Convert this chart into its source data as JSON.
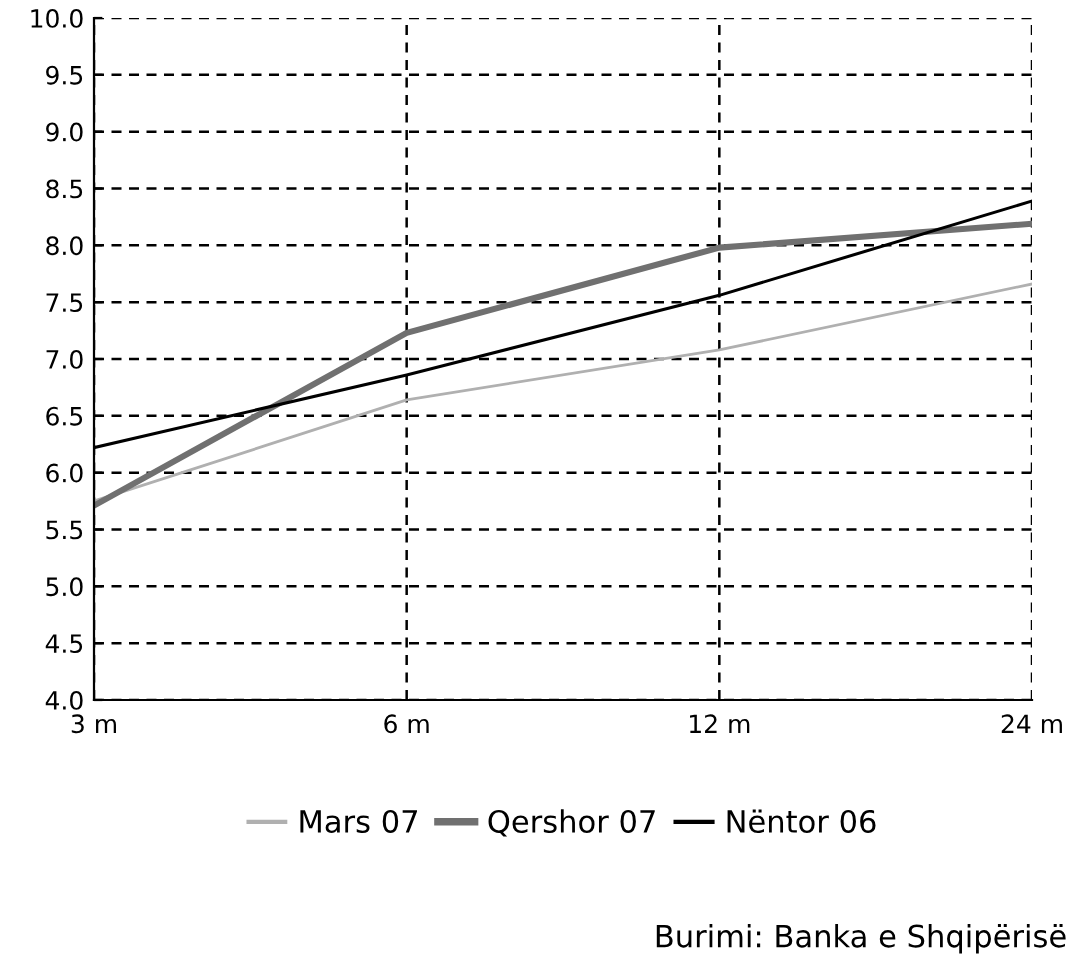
{
  "chart_data": {
    "type": "line",
    "categories": [
      "3 m",
      "6 m",
      "12 m",
      "24 m"
    ],
    "series": [
      {
        "name": "Mars 07",
        "color": "#b0b0b0",
        "values": [
          5.75,
          6.64,
          7.08,
          7.66
        ]
      },
      {
        "name": "Qershor 07",
        "color": "#707070",
        "values": [
          5.71,
          7.23,
          7.98,
          8.19
        ]
      },
      {
        "name": "Nëntor 06",
        "color": "#000000",
        "values": [
          6.22,
          6.86,
          7.56,
          8.39
        ]
      }
    ],
    "ylim": [
      4.0,
      10.0
    ],
    "yticks": [
      {
        "value": 4.0,
        "label": "4.0"
      },
      {
        "value": 4.5,
        "label": "4.5"
      },
      {
        "value": 5.0,
        "label": "5.0"
      },
      {
        "value": 5.5,
        "label": "5.5"
      },
      {
        "value": 6.0,
        "label": "6.0"
      },
      {
        "value": 6.5,
        "label": "6.5"
      },
      {
        "value": 7.0,
        "label": "7.0"
      },
      {
        "value": 7.5,
        "label": "7.5"
      },
      {
        "value": 8.0,
        "label": "8.0"
      },
      {
        "value": 8.5,
        "label": "8.5"
      },
      {
        "value": 9.0,
        "label": "9.0"
      },
      {
        "value": 9.5,
        "label": "9.5"
      },
      {
        "value": 10.0,
        "label": "10.0"
      }
    ],
    "grid": true,
    "legend": "bottom",
    "marker": "none",
    "line_style": "solid",
    "annotations": [
      "Burimi: Banka e Shqipërisë"
    ]
  }
}
